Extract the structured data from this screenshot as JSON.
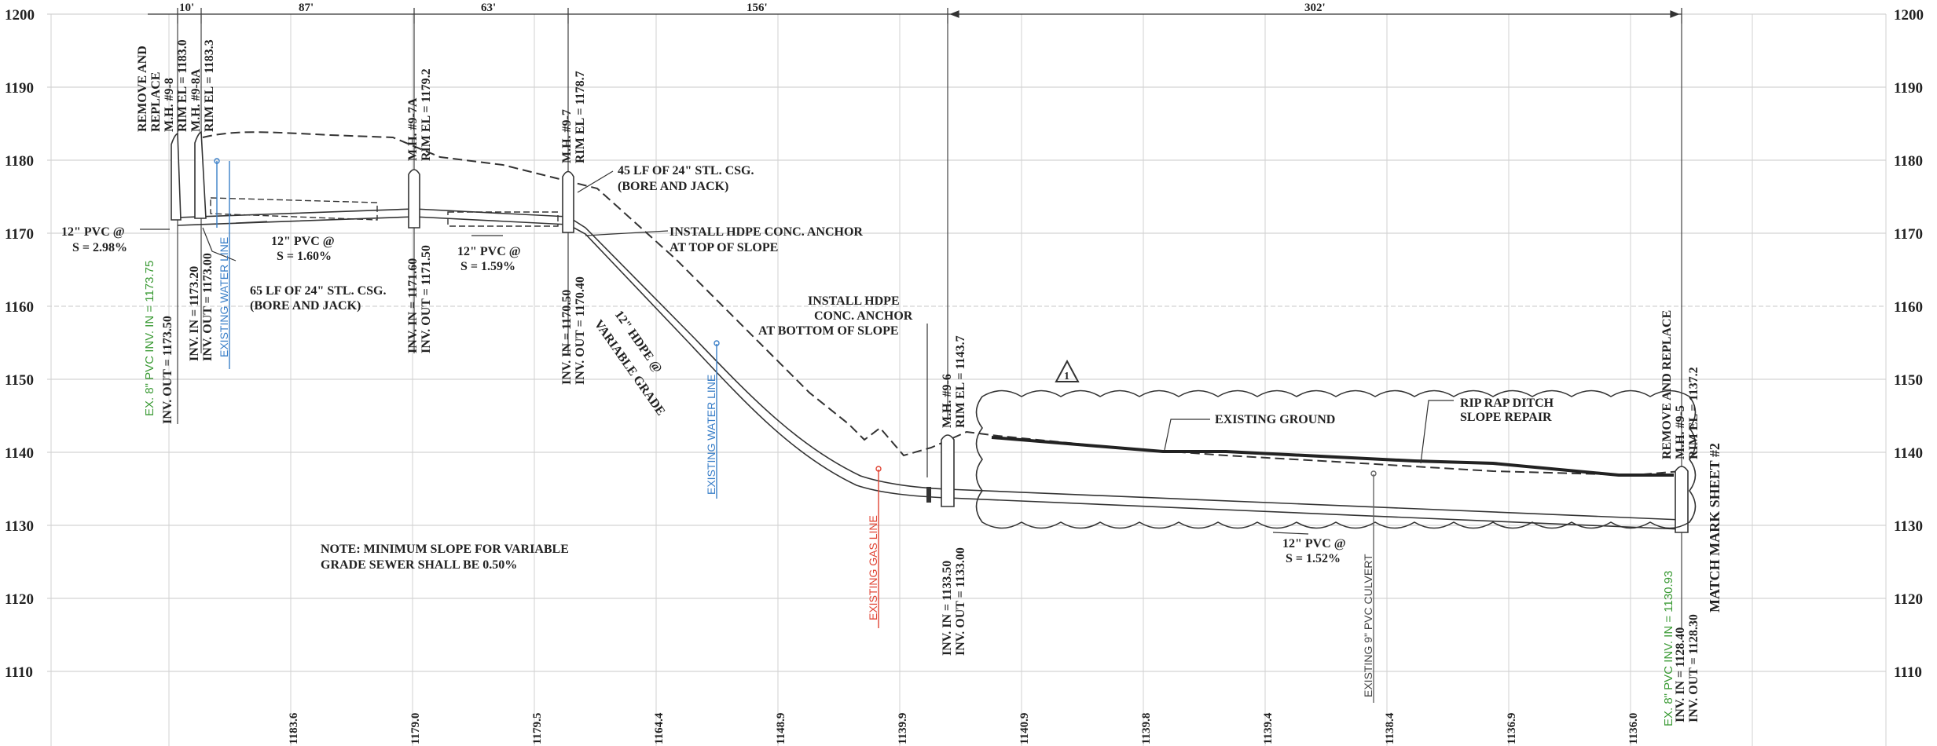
{
  "elevations": [
    "1200",
    "1190",
    "1180",
    "1170",
    "1160",
    "1150",
    "1140",
    "1130",
    "1120",
    "1110"
  ],
  "stations_ground": [
    "1183.6",
    "1179.0",
    "1179.5",
    "1164.4",
    "1148.9",
    "1139.9",
    "1140.9",
    "1139.8",
    "1139.4",
    "1138.4",
    "1136.9",
    "1136.0"
  ],
  "dimensions": [
    "10'",
    "87'",
    "63'",
    "156'",
    "302'"
  ],
  "mh": {
    "remove_replace": [
      "REMOVE AND",
      "REPLACE"
    ],
    "mh8": [
      "M.H. #9-8",
      "RIM EL = 1183.0"
    ],
    "mh8a": [
      "M.H. #9-8A",
      "RIM EL = 1183.3"
    ],
    "mh7a": [
      "M.H. #9-7A",
      "RIM EL = 1179.2"
    ],
    "mh7": [
      "M.H. #9-7",
      "RIM EL = 1178.7"
    ],
    "mh6": [
      "M.H. #9-6",
      "RIM EL = 1143.7"
    ],
    "mh5": [
      "REMOVE AND REPLACE",
      "M.H. #9-5",
      "RIM EL = 1137.2"
    ]
  },
  "inverts": {
    "mh8_out": "INV. OUT = 1173.50",
    "mh8a": [
      "INV. IN = 1173.20",
      "INV. OUT = 1173.00"
    ],
    "mh7a": [
      "INV. IN = 1171.60",
      "INV. OUT = 1171.50"
    ],
    "mh7": [
      "INV. IN = 1170.50",
      "INV. OUT = 1170.40"
    ],
    "mh6": [
      "INV. IN = 1133.50",
      "INV. OUT = 1133.00"
    ],
    "mh5": [
      "INV. IN = 1128.40",
      "INV. OUT = 1128.30"
    ]
  },
  "utilities": {
    "ex_pvc_1": "EX. 8\" PVC INV. IN = 1173.75",
    "ex_pvc_2": "EX. 8\" PVC INV. IN = 1130.93",
    "water1": "EXISTING WATER LINE",
    "water2": "EXISTING WATER LINE",
    "gas": "EXISTING GAS LINE",
    "culvert": "EXISTING 9\" PVC CULVERT"
  },
  "slopes": {
    "s1": [
      "12\" PVC @",
      "S = 2.98%"
    ],
    "s2": [
      "12\" PVC @",
      "S = 1.60%"
    ],
    "s3": [
      "12\" PVC @",
      "S = 1.59%"
    ],
    "s4": [
      "12\" HDPE @",
      "VARIABLE GRADE"
    ],
    "s5": [
      "12\" PVC @",
      "S = 1.52%"
    ]
  },
  "callouts": {
    "casing1": [
      "45 LF OF 24\" STL. CSG.",
      "(BORE AND JACK)"
    ],
    "casing2": [
      "65 LF OF 24\" STL. CSG.",
      "(BORE AND JACK)"
    ],
    "anchor_top": [
      "INSTALL HDPE CONC. ANCHOR",
      "AT TOP OF SLOPE"
    ],
    "anchor_bottom": [
      "INSTALL HDPE",
      "CONC. ANCHOR",
      "AT BOTTOM OF SLOPE"
    ],
    "existing_ground": "EXISTING GROUND",
    "riprap": [
      "RIP RAP DITCH",
      "SLOPE REPAIR"
    ],
    "note": [
      "NOTE: MINIMUM SLOPE FOR VARIABLE",
      "GRADE SEWER SHALL BE 0.50%"
    ],
    "match": "MATCH MARK SHEET #2",
    "revision": "1"
  }
}
